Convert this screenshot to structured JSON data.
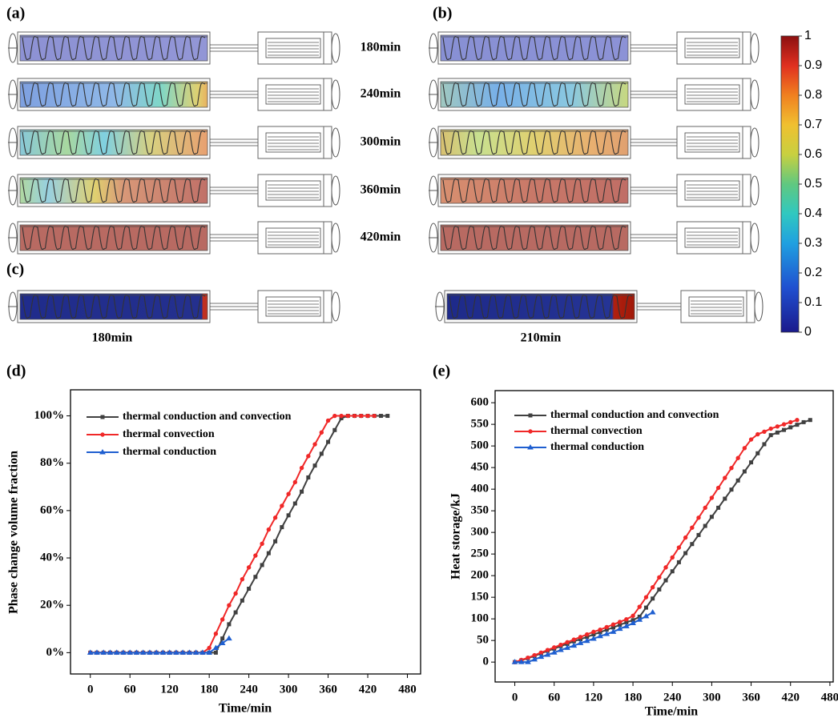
{
  "figure": {
    "labels": {
      "a": "(a)",
      "b": "(b)",
      "c": "(c)"
    },
    "times": [
      "180min",
      "240min",
      "300min",
      "360min",
      "420min"
    ],
    "c_times": [
      "180min",
      "210min"
    ],
    "colorbar": {
      "ylim": [
        0,
        1
      ],
      "yticks": [
        0,
        0.1,
        0.2,
        0.3,
        0.4,
        0.5,
        0.6,
        0.7,
        0.8,
        0.9,
        1
      ]
    }
  },
  "chart_data": [
    {
      "type": "line",
      "panel_label": "(d)",
      "x_label": "Time/min",
      "y_label": "Phase change volume fraction",
      "xlim": [
        -30,
        500
      ],
      "xticks": [
        0,
        60,
        120,
        180,
        240,
        300,
        360,
        420,
        480
      ],
      "ylim": [
        -9,
        111
      ],
      "yticks": [
        {
          "value": 0,
          "label": "0%"
        },
        {
          "value": 20,
          "label": "20%"
        },
        {
          "value": 40,
          "label": "40%"
        },
        {
          "value": 60,
          "label": "60%"
        },
        {
          "value": 80,
          "label": "80%"
        },
        {
          "value": 100,
          "label": "100%"
        }
      ],
      "x": [
        0,
        10,
        20,
        30,
        40,
        50,
        60,
        70,
        80,
        90,
        100,
        110,
        120,
        130,
        140,
        150,
        160,
        170,
        180,
        190,
        200,
        210,
        220,
        230,
        240,
        250,
        260,
        270,
        280,
        290,
        300,
        310,
        320,
        330,
        340,
        350,
        360,
        370,
        380,
        390,
        400,
        410,
        420,
        430,
        440,
        450
      ],
      "series": [
        {
          "name": "thermal conduction and convection",
          "color": "#404040",
          "marker": "square",
          "values": [
            0,
            0,
            0,
            0,
            0,
            0,
            0,
            0,
            0,
            0,
            0,
            0,
            0,
            0,
            0,
            0,
            0,
            0,
            0,
            0,
            6,
            12,
            17,
            22,
            27,
            32,
            37,
            42,
            47,
            53,
            58,
            63,
            68,
            74,
            79,
            84,
            89,
            94,
            99,
            100,
            100,
            100,
            100,
            100,
            100,
            100
          ]
        },
        {
          "name": "thermal convection",
          "color": "#f02828",
          "marker": "circle",
          "values": [
            0,
            0,
            0,
            0,
            0,
            0,
            0,
            0,
            0,
            0,
            0,
            0,
            0,
            0,
            0,
            0,
            0,
            0,
            2,
            8,
            14,
            20,
            25,
            31,
            36,
            41,
            46,
            52,
            57,
            62,
            67,
            72,
            78,
            83,
            88,
            93,
            98,
            100,
            100,
            100,
            100,
            100,
            100,
            100,
            null,
            null
          ]
        },
        {
          "name": "thermal conduction",
          "color": "#1f5fd0",
          "marker": "triangle",
          "values": [
            0,
            0,
            0,
            0,
            0,
            0,
            0,
            0,
            0,
            0,
            0,
            0,
            0,
            0,
            0,
            0,
            0,
            0,
            0,
            2,
            4,
            6,
            null,
            null,
            null,
            null,
            null,
            null,
            null,
            null,
            null,
            null,
            null,
            null,
            null,
            null,
            null,
            null,
            null,
            null,
            null,
            null,
            null,
            null,
            null,
            null
          ]
        }
      ]
    },
    {
      "type": "line",
      "panel_label": "(e)",
      "x_label": "Time/min",
      "y_label": "Heat storage/kJ",
      "xlim": [
        -30,
        485
      ],
      "xticks": [
        0,
        60,
        120,
        180,
        240,
        300,
        360,
        420,
        480
      ],
      "ylim": [
        -46,
        628
      ],
      "yticks": [
        0,
        50,
        100,
        150,
        200,
        250,
        300,
        350,
        400,
        450,
        500,
        550,
        600
      ],
      "x": [
        0,
        10,
        20,
        30,
        40,
        50,
        60,
        70,
        80,
        90,
        100,
        110,
        120,
        130,
        140,
        150,
        160,
        170,
        180,
        190,
        200,
        210,
        220,
        230,
        240,
        250,
        260,
        270,
        280,
        290,
        300,
        310,
        320,
        330,
        340,
        350,
        360,
        370,
        380,
        390,
        400,
        410,
        420,
        430,
        440,
        450
      ],
      "series": [
        {
          "name": "thermal conduction and convection",
          "color": "#404040",
          "marker": "square",
          "values": [
            0,
            4,
            9,
            14,
            20,
            26,
            31,
            37,
            42,
            48,
            53,
            58,
            64,
            69,
            75,
            80,
            86,
            92,
            97,
            105,
            126,
            147,
            168,
            189,
            210,
            231,
            252,
            273,
            294,
            315,
            336,
            357,
            378,
            399,
            420,
            441,
            462,
            483,
            504,
            525,
            531,
            537,
            543,
            549,
            555,
            560
          ]
        },
        {
          "name": "thermal convection",
          "color": "#f02828",
          "marker": "circle",
          "values": [
            0,
            5,
            10,
            16,
            22,
            28,
            34,
            40,
            46,
            52,
            58,
            64,
            70,
            75,
            81,
            87,
            93,
            99,
            107,
            128,
            150,
            173,
            196,
            219,
            242,
            265,
            288,
            311,
            334,
            357,
            380,
            403,
            426,
            449,
            472,
            495,
            515,
            527,
            533,
            540,
            545,
            550,
            555,
            560,
            null,
            null
          ]
        },
        {
          "name": "thermal conduction",
          "color": "#1f5fd0",
          "marker": "triangle",
          "values": [
            0,
            0,
            0,
            6,
            12,
            17,
            22,
            28,
            33,
            38,
            44,
            49,
            54,
            60,
            65,
            70,
            77,
            83,
            90,
            98,
            106,
            115,
            null,
            null,
            null,
            null,
            null,
            null,
            null,
            null,
            null,
            null,
            null,
            null,
            null,
            null,
            null,
            null,
            null,
            null,
            null,
            null,
            null,
            null,
            null,
            null
          ]
        }
      ]
    }
  ]
}
